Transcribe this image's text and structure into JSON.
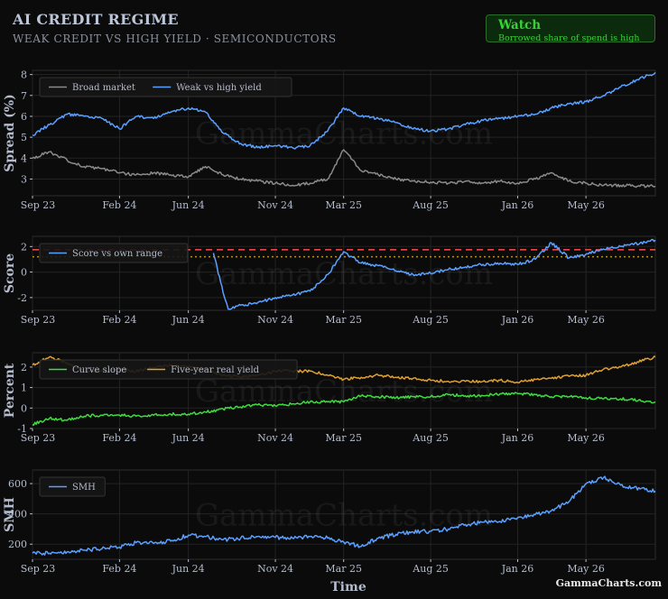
{
  "title": "AI CREDIT REGIME",
  "subtitle": "WEAK CREDIT VS HIGH YIELD · SEMICONDUCTORS",
  "badge": {
    "title": "Watch",
    "text": "Borrowed share of spend is high",
    "color": "#36d236"
  },
  "watermark": "GammaCharts.com",
  "footer_logo": "GammaCharts.com",
  "xlabel": "Time",
  "x_ticks": [
    "Sep 23",
    "Feb 24",
    "Jun 24",
    "Nov 24",
    "Mar 25",
    "Aug 25",
    "Jan 26",
    "May 26"
  ],
  "x_tick_dates": [
    "2023-09-01",
    "2024-02-01",
    "2024-06-01",
    "2024-11-01",
    "2025-03-01",
    "2025-08-01",
    "2026-01-01",
    "2026-05-01"
  ],
  "x_range": [
    "2023-09-01",
    "2026-08-31"
  ],
  "colors": {
    "broad": "#8a8a8a",
    "weak": "#5aa0ff",
    "score": "#5aa0ff",
    "curve": "#3fdc3f",
    "real": "#e0a030",
    "smh": "#5aa0ff",
    "upper_threshold": "#e04a4a",
    "lower_threshold": "#b8901a"
  },
  "chart_data": [
    {
      "type": "line",
      "ylabel": "Spread (%)",
      "ylim": [
        2.2,
        8.2
      ],
      "yticks": [
        3,
        4,
        5,
        6,
        7,
        8
      ],
      "grid": true,
      "legend": "top-left",
      "series": [
        {
          "name": "Broad market",
          "color": "#8a8a8a",
          "points": [
            [
              "2023-09-01",
              4.0
            ],
            [
              "2023-10-01",
              4.3
            ],
            [
              "2023-11-01",
              3.9
            ],
            [
              "2023-12-01",
              3.6
            ],
            [
              "2024-01-01",
              3.5
            ],
            [
              "2024-02-01",
              3.3
            ],
            [
              "2024-03-01",
              3.2
            ],
            [
              "2024-04-01",
              3.3
            ],
            [
              "2024-05-01",
              3.2
            ],
            [
              "2024-06-01",
              3.1
            ],
            [
              "2024-07-01",
              3.6
            ],
            [
              "2024-08-01",
              3.2
            ],
            [
              "2024-09-01",
              3.0
            ],
            [
              "2024-10-01",
              2.9
            ],
            [
              "2024-11-01",
              2.8
            ],
            [
              "2024-12-01",
              2.7
            ],
            [
              "2025-01-01",
              2.8
            ],
            [
              "2025-02-01",
              3.0
            ],
            [
              "2025-03-01",
              4.4
            ],
            [
              "2025-04-01",
              3.4
            ],
            [
              "2025-05-01",
              3.2
            ],
            [
              "2025-06-01",
              3.0
            ],
            [
              "2025-07-01",
              2.9
            ],
            [
              "2025-08-01",
              2.85
            ],
            [
              "2025-09-01",
              2.8
            ],
            [
              "2025-10-01",
              2.9
            ],
            [
              "2025-11-01",
              2.8
            ],
            [
              "2025-12-01",
              2.9
            ],
            [
              "2026-01-01",
              2.8
            ],
            [
              "2026-02-01",
              3.0
            ],
            [
              "2026-03-01",
              3.3
            ],
            [
              "2026-04-01",
              2.9
            ],
            [
              "2026-05-01",
              2.8
            ],
            [
              "2026-06-01",
              2.7
            ],
            [
              "2026-07-01",
              2.7
            ],
            [
              "2026-08-31",
              2.65
            ]
          ]
        },
        {
          "name": "Weak vs high yield",
          "color": "#5aa0ff",
          "points": [
            [
              "2023-09-01",
              5.1
            ],
            [
              "2023-10-01",
              5.6
            ],
            [
              "2023-11-01",
              6.1
            ],
            [
              "2023-12-01",
              6.0
            ],
            [
              "2024-01-01",
              5.9
            ],
            [
              "2024-02-01",
              5.4
            ],
            [
              "2024-03-01",
              6.0
            ],
            [
              "2024-04-01",
              5.9
            ],
            [
              "2024-05-01",
              6.2
            ],
            [
              "2024-06-01",
              6.4
            ],
            [
              "2024-07-01",
              6.2
            ],
            [
              "2024-08-01",
              5.2
            ],
            [
              "2024-09-01",
              4.7
            ],
            [
              "2024-10-01",
              4.5
            ],
            [
              "2024-11-01",
              4.6
            ],
            [
              "2024-12-01",
              4.5
            ],
            [
              "2025-01-01",
              4.6
            ],
            [
              "2025-02-01",
              5.3
            ],
            [
              "2025-03-01",
              6.4
            ],
            [
              "2025-04-01",
              6.0
            ],
            [
              "2025-05-01",
              5.9
            ],
            [
              "2025-06-01",
              5.7
            ],
            [
              "2025-07-01",
              5.4
            ],
            [
              "2025-08-01",
              5.3
            ],
            [
              "2025-09-01",
              5.4
            ],
            [
              "2025-10-01",
              5.6
            ],
            [
              "2025-11-01",
              5.8
            ],
            [
              "2025-12-01",
              5.9
            ],
            [
              "2026-01-01",
              6.0
            ],
            [
              "2026-02-01",
              6.1
            ],
            [
              "2026-03-01",
              6.4
            ],
            [
              "2026-04-01",
              6.6
            ],
            [
              "2026-05-01",
              6.7
            ],
            [
              "2026-06-01",
              7.0
            ],
            [
              "2026-07-01",
              7.4
            ],
            [
              "2026-08-31",
              8.1
            ]
          ]
        }
      ]
    },
    {
      "type": "line",
      "ylabel": "Score",
      "ylim": [
        -3.0,
        2.8
      ],
      "yticks": [
        -2,
        0,
        2
      ],
      "thresholds": [
        1.75,
        1.2
      ],
      "grid": true,
      "legend": "top-left",
      "series": [
        {
          "name": "Score vs own range",
          "color": "#5aa0ff",
          "points": [
            [
              "2024-07-15",
              1.5
            ],
            [
              "2024-08-01",
              -1.6
            ],
            [
              "2024-08-10",
              -2.9
            ],
            [
              "2024-09-01",
              -2.6
            ],
            [
              "2024-10-01",
              -2.4
            ],
            [
              "2024-11-01",
              -2.0
            ],
            [
              "2024-12-01",
              -1.8
            ],
            [
              "2025-01-01",
              -1.5
            ],
            [
              "2025-02-01",
              -0.2
            ],
            [
              "2025-03-01",
              1.6
            ],
            [
              "2025-04-01",
              0.7
            ],
            [
              "2025-05-01",
              0.5
            ],
            [
              "2025-06-01",
              0.1
            ],
            [
              "2025-07-01",
              -0.2
            ],
            [
              "2025-08-01",
              -0.1
            ],
            [
              "2025-09-01",
              0.2
            ],
            [
              "2025-10-01",
              0.4
            ],
            [
              "2025-11-01",
              0.6
            ],
            [
              "2025-12-01",
              0.7
            ],
            [
              "2026-01-01",
              0.6
            ],
            [
              "2026-02-01",
              1.0
            ],
            [
              "2026-03-01",
              2.3
            ],
            [
              "2026-04-01",
              1.1
            ],
            [
              "2026-05-01",
              1.4
            ],
            [
              "2026-06-01",
              1.8
            ],
            [
              "2026-07-01",
              2.0
            ],
            [
              "2026-08-31",
              2.5
            ]
          ]
        }
      ]
    },
    {
      "type": "line",
      "ylabel": "Percent",
      "ylim": [
        -1.0,
        2.7
      ],
      "yticks": [
        -1,
        0,
        1,
        2
      ],
      "grid": true,
      "legend": "top-left",
      "series": [
        {
          "name": "Curve slope",
          "color": "#3fdc3f",
          "points": [
            [
              "2023-09-01",
              -0.8
            ],
            [
              "2023-10-01",
              -0.5
            ],
            [
              "2023-11-01",
              -0.6
            ],
            [
              "2023-12-01",
              -0.4
            ],
            [
              "2024-01-01",
              -0.35
            ],
            [
              "2024-02-01",
              -0.35
            ],
            [
              "2024-03-01",
              -0.4
            ],
            [
              "2024-04-01",
              -0.35
            ],
            [
              "2024-05-01",
              -0.3
            ],
            [
              "2024-06-01",
              -0.3
            ],
            [
              "2024-07-01",
              -0.2
            ],
            [
              "2024-08-01",
              -0.05
            ],
            [
              "2024-09-01",
              0.05
            ],
            [
              "2024-10-01",
              0.15
            ],
            [
              "2024-11-01",
              0.1
            ],
            [
              "2024-12-01",
              0.2
            ],
            [
              "2025-01-01",
              0.3
            ],
            [
              "2025-02-01",
              0.3
            ],
            [
              "2025-03-01",
              0.3
            ],
            [
              "2025-04-01",
              0.6
            ],
            [
              "2025-05-01",
              0.55
            ],
            [
              "2025-06-01",
              0.5
            ],
            [
              "2025-07-01",
              0.55
            ],
            [
              "2025-08-01",
              0.55
            ],
            [
              "2025-09-01",
              0.65
            ],
            [
              "2025-10-01",
              0.6
            ],
            [
              "2025-11-01",
              0.6
            ],
            [
              "2025-12-01",
              0.7
            ],
            [
              "2026-01-01",
              0.7
            ],
            [
              "2026-02-01",
              0.65
            ],
            [
              "2026-03-01",
              0.55
            ],
            [
              "2026-04-01",
              0.55
            ],
            [
              "2026-05-01",
              0.5
            ],
            [
              "2026-06-01",
              0.45
            ],
            [
              "2026-07-01",
              0.45
            ],
            [
              "2026-08-31",
              0.3
            ]
          ]
        },
        {
          "name": "Five-year real yield",
          "color": "#e0a030",
          "points": [
            [
              "2023-09-01",
              2.1
            ],
            [
              "2023-10-01",
              2.5
            ],
            [
              "2023-11-01",
              2.2
            ],
            [
              "2023-12-01",
              1.8
            ],
            [
              "2024-01-01",
              1.8
            ],
            [
              "2024-02-01",
              1.9
            ],
            [
              "2024-03-01",
              1.8
            ],
            [
              "2024-04-01",
              2.0
            ],
            [
              "2024-05-01",
              2.1
            ],
            [
              "2024-06-01",
              2.0
            ],
            [
              "2024-07-01",
              1.9
            ],
            [
              "2024-08-01",
              1.6
            ],
            [
              "2024-09-01",
              1.5
            ],
            [
              "2024-10-01",
              1.6
            ],
            [
              "2024-11-01",
              1.8
            ],
            [
              "2024-12-01",
              1.8
            ],
            [
              "2025-01-01",
              1.8
            ],
            [
              "2025-02-01",
              1.6
            ],
            [
              "2025-03-01",
              1.4
            ],
            [
              "2025-04-01",
              1.5
            ],
            [
              "2025-05-01",
              1.6
            ],
            [
              "2025-06-01",
              1.5
            ],
            [
              "2025-07-01",
              1.45
            ],
            [
              "2025-08-01",
              1.35
            ],
            [
              "2025-09-01",
              1.3
            ],
            [
              "2025-10-01",
              1.3
            ],
            [
              "2025-11-01",
              1.3
            ],
            [
              "2025-12-01",
              1.35
            ],
            [
              "2026-01-01",
              1.25
            ],
            [
              "2026-02-01",
              1.4
            ],
            [
              "2026-03-01",
              1.45
            ],
            [
              "2026-04-01",
              1.55
            ],
            [
              "2026-05-01",
              1.6
            ],
            [
              "2026-06-01",
              1.9
            ],
            [
              "2026-07-01",
              2.0
            ],
            [
              "2026-08-31",
              2.5
            ]
          ]
        }
      ]
    },
    {
      "type": "line",
      "ylabel": "SMH",
      "ylim": [
        100,
        690
      ],
      "yticks": [
        200,
        400,
        600
      ],
      "grid": true,
      "legend": "top-left",
      "series": [
        {
          "name": "SMH",
          "color": "#5aa0ff",
          "points": [
            [
              "2023-09-01",
              140
            ],
            [
              "2023-10-01",
              140
            ],
            [
              "2023-11-01",
              150
            ],
            [
              "2023-12-01",
              160
            ],
            [
              "2024-01-01",
              170
            ],
            [
              "2024-02-01",
              180
            ],
            [
              "2024-03-01",
              210
            ],
            [
              "2024-04-01",
              205
            ],
            [
              "2024-05-01",
              220
            ],
            [
              "2024-06-01",
              260
            ],
            [
              "2024-07-01",
              250
            ],
            [
              "2024-08-01",
              230
            ],
            [
              "2024-09-01",
              240
            ],
            [
              "2024-10-01",
              250
            ],
            [
              "2024-11-01",
              245
            ],
            [
              "2024-12-01",
              240
            ],
            [
              "2025-01-01",
              250
            ],
            [
              "2025-02-01",
              240
            ],
            [
              "2025-03-01",
              215
            ],
            [
              "2025-04-01",
              185
            ],
            [
              "2025-05-01",
              240
            ],
            [
              "2025-06-01",
              265
            ],
            [
              "2025-07-01",
              280
            ],
            [
              "2025-08-01",
              285
            ],
            [
              "2025-09-01",
              300
            ],
            [
              "2025-10-01",
              330
            ],
            [
              "2025-11-01",
              345
            ],
            [
              "2025-12-01",
              350
            ],
            [
              "2026-01-01",
              375
            ],
            [
              "2026-02-01",
              395
            ],
            [
              "2026-03-01",
              420
            ],
            [
              "2026-04-01",
              480
            ],
            [
              "2026-05-01",
              600
            ],
            [
              "2026-06-01",
              640
            ],
            [
              "2026-07-01",
              590
            ],
            [
              "2026-08-31",
              550
            ]
          ]
        }
      ]
    }
  ]
}
